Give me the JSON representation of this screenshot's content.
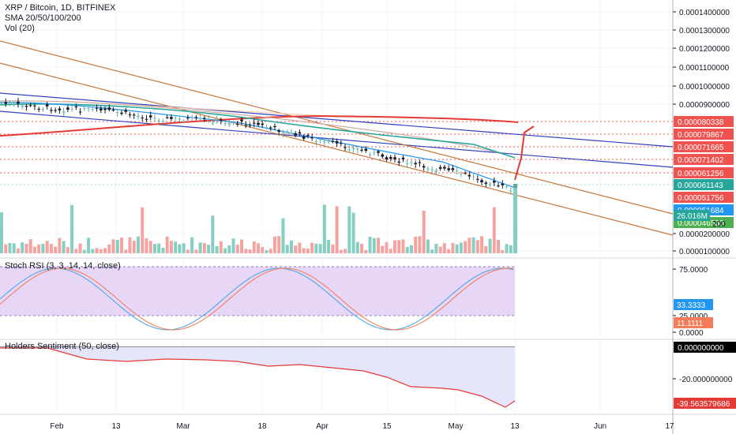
{
  "header": {
    "symbol_line": "XRP / Bitcoin, 1D, BITFINEX",
    "sma_line": "SMA 20/50/100/200",
    "vol_line": "Vol (20)"
  },
  "colors": {
    "up": "#7ec9be",
    "down": "#ef5350",
    "up_vol": "#86cec1",
    "down_vol": "#f4a3a0",
    "sma20": "#2196f3",
    "sma50": "#26a69a",
    "sma100": "#f5a37d",
    "sma200": "#e53935",
    "channel_blue": "#3040c0",
    "channel_orange": "#c8763a",
    "rsi_k": "#4fa8e0",
    "rsi_d": "#f08060",
    "rsi_band": "#e8d6f7",
    "sentiment_line": "#e53935",
    "sentiment_fill": "#e6e6fb"
  },
  "price_axis": {
    "ticks": [
      "0.0001400000",
      "0.0001300000",
      "0.0001200000",
      "0.0001100000",
      "0.0001000000",
      "0.0000900000",
      "0.0000200000",
      "0.0000100000"
    ],
    "labels": [
      {
        "text": "0.000080338",
        "color": "#ef5350"
      },
      {
        "text": "0.000079867",
        "color": "#ef5350"
      },
      {
        "text": "0.000071665",
        "color": "#ef5350"
      },
      {
        "text": "0.000071402",
        "color": "#ef5350"
      },
      {
        "text": "0.000061256",
        "color": "#ef5350"
      },
      {
        "text": "0.000061143",
        "color": "#26a69a"
      },
      {
        "text": "0.000051756",
        "color": "#ef5350"
      },
      {
        "text": "0.000051684",
        "color": "#2196f3"
      },
      {
        "text": "0.000046530",
        "color": "#4caf50"
      },
      {
        "text": "26.016M",
        "color": "#26a69a"
      }
    ]
  },
  "rsi": {
    "title": "Stoch RSI (3, 3, 14, 14, close)",
    "ticks": [
      "75.0000",
      "25.0000",
      "0.0000"
    ],
    "labels": [
      {
        "text": "33.3333",
        "color": "#2196f3"
      },
      {
        "text": "11.1111",
        "color": "#f57c5a"
      }
    ]
  },
  "sentiment": {
    "title": "Holders Sentiment (50, close)",
    "ticks": [
      "-20.000000000"
    ],
    "labels": [
      {
        "text": "0.000000000",
        "color": "#000000"
      },
      {
        "text": "-39.563579686",
        "color": "#e53935"
      }
    ]
  },
  "time_axis": [
    "Feb",
    "13",
    "Mar",
    "18",
    "Apr",
    "15",
    "May",
    "13",
    "Jun",
    "17"
  ],
  "chart_data": {
    "type": "candlestick",
    "title": "XRP / Bitcoin, 1D, BITFINEX",
    "indicators": [
      "SMA 20/50/100/200",
      "Vol (20)",
      "Stoch RSI (3, 3, 14, 14, close)",
      "Holders Sentiment (50, close)"
    ],
    "y_ticks": [
      0.00014,
      0.00013,
      0.00012,
      0.00011,
      0.0001,
      9e-05,
      2e-05,
      1e-05
    ],
    "last_close": 4.653e-05,
    "approx_close_path": [
      {
        "x": "Jan 21",
        "y": 8.8e-05
      },
      {
        "x": "Feb 1",
        "y": 8.75e-05
      },
      {
        "x": "Feb 13",
        "y": 8.55e-05
      },
      {
        "x": "Mar 1",
        "y": 8.45e-05
      },
      {
        "x": "Mar 18",
        "y": 7.9e-05
      },
      {
        "x": "Apr 1",
        "y": 7.2e-05
      },
      {
        "x": "Apr 15",
        "y": 6.6e-05
      },
      {
        "x": "May 1",
        "y": 6e-05
      },
      {
        "x": "May 13",
        "y": 4.65e-05
      }
    ],
    "volume_last": "26.016M",
    "stoch_rsi": {
      "k": 33.3333,
      "d": 11.1111
    },
    "holders_sentiment_last": -39.563579686
  }
}
